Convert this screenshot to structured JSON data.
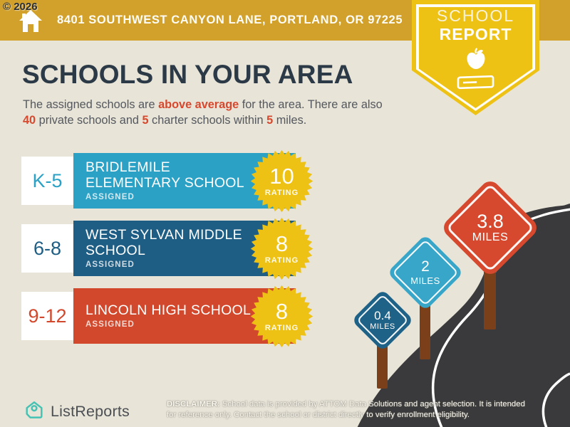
{
  "copyright": "© 2026",
  "header": {
    "address": "8401 SOUTHWEST CANYON LANE, PORTLAND, OR 97225",
    "home_icon": "home-icon",
    "badge": {
      "line1": "SCHOOL",
      "line2": "REPORT",
      "icons": [
        "apple-icon",
        "book-icon"
      ]
    }
  },
  "main": {
    "title": "SCHOOLS IN YOUR AREA",
    "subtitle": {
      "p1": "The assigned schools are ",
      "a1": "above average",
      "p2": " for the area. There are also ",
      "a2": "40",
      "p3": " private schools and ",
      "a3": "5",
      "p4": " charter schools within ",
      "a4": "5",
      "p5": " miles."
    }
  },
  "schools": [
    {
      "grades": "K-5",
      "name": "BRIDLEMILE ELEMENTARY SCHOOL",
      "status": "ASSIGNED",
      "rating": "10",
      "rating_label": "RATING"
    },
    {
      "grades": "6-8",
      "name": "WEST SYLVAN MIDDLE SCHOOL",
      "status": "ASSIGNED",
      "rating": "8",
      "rating_label": "RATING"
    },
    {
      "grades": "9-12",
      "name": "LINCOLN HIGH SCHOOL",
      "status": "ASSIGNED",
      "rating": "8",
      "rating_label": "RATING"
    }
  ],
  "signs": [
    {
      "distance": "0.4",
      "unit": "MILES"
    },
    {
      "distance": "2",
      "unit": "MILES"
    },
    {
      "distance": "3.8",
      "unit": "MILES"
    }
  ],
  "footer": {
    "brand": "ListReports",
    "logo_icon": "house-pin-icon",
    "disclaimer_label": "DISCLAIMER:",
    "disclaimer_line1": " School data is provided by ATTOM Data Solutions and agent selection. It is intended",
    "disclaimer_line2": "for reference only. Contact the school or district directly to verify enrollment eligibility."
  },
  "colors": {
    "header_gold": "#D2A12B",
    "badge_yellow": "#EDC214",
    "background_cream": "#E8E4D8",
    "title_navy": "#2C3A47",
    "body_gray": "#54585E",
    "accent_red": "#D6492E",
    "row_teal": "#2BA1C5",
    "row_dark_blue": "#1E5E84",
    "row_red": "#D2482C",
    "sign_teal": "#38A6C9",
    "sign_dark_blue": "#1F6287",
    "sign_red": "#D6492E",
    "post_brown": "#7B4019",
    "road_charcoal": "#3A3A3C",
    "logo_teal": "#44C2B3",
    "white": "#FFFFFF"
  }
}
